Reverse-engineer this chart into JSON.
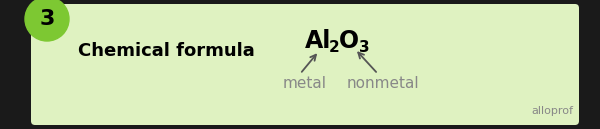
{
  "bg_color": "#1a1a1a",
  "box_color": "#dff2c1",
  "circle_color": "#7dc832",
  "circle_text": "3",
  "circle_text_color": "#000000",
  "title_text": "Chemical formula",
  "title_color": "#000000",
  "formula_Al": "Al",
  "formula_2": "2",
  "formula_O": "O",
  "formula_3": "3",
  "formula_color": "#000000",
  "label_metal": "metal",
  "label_nonmetal": "nonmetal",
  "label_color": "#888888",
  "arrow_color": "#555555",
  "watermark": "alloprof",
  "watermark_color": "#888888",
  "figsize": [
    6.0,
    1.29
  ],
  "dpi": 100
}
